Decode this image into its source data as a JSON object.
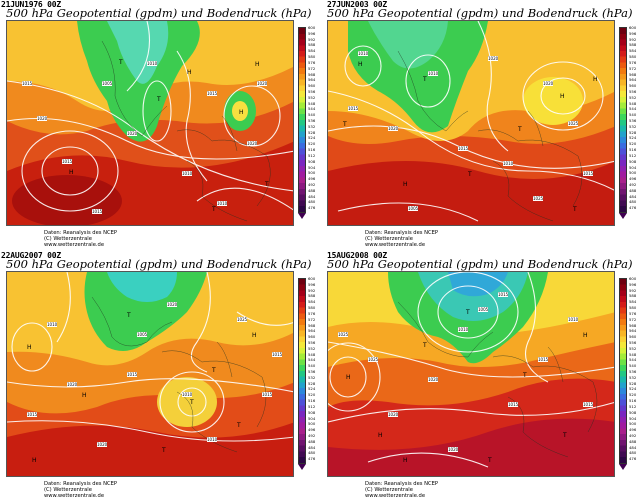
{
  "panels": [
    {
      "date": "21JUN1976 00Z",
      "title": "500 hPa Geopotential (gpdm) und Bodendruck (hPa)",
      "credits": [
        "Daten: Reanalysis des NCEP",
        "(C) Wetterzentrale",
        "www.wetterzentrale.de"
      ]
    },
    {
      "date": "27JUN2003 00Z",
      "title": "500 hPa Geopotential (gpdm) und Bodendruck (hPa)",
      "credits": [
        "Daten: Reanalysis des NCEP",
        "(C) Wetterzentrale",
        "www.wetterzentrale.de"
      ]
    },
    {
      "date": "22AUG2007 00Z",
      "title": "500 hPa Geopotential (gpdm) und Bodendruck (hPa)",
      "credits": [
        "Daten: Reanalysis des NCEP",
        "(C) Wetterzentrale",
        "www.wetterzentrale.de"
      ]
    },
    {
      "date": "15AUG2008 00Z",
      "title": "500 hPa Geopotential (gpdm) und Bodendruck (hPa)",
      "credits": [
        "Daten: Reanalysis des NCEP",
        "(C) Wetterzentrale",
        "www.wetterzentrale.de"
      ]
    }
  ],
  "colorbar": {
    "ticks": [
      "600",
      "596",
      "592",
      "588",
      "584",
      "580",
      "576",
      "572",
      "568",
      "564",
      "560",
      "556",
      "552",
      "548",
      "544",
      "540",
      "536",
      "532",
      "528",
      "524",
      "520",
      "516",
      "512",
      "508",
      "504",
      "500",
      "496",
      "492",
      "488",
      "484",
      "480",
      "476"
    ],
    "colors": [
      "#6e0010",
      "#8a0010",
      "#a5001a",
      "#c00a1a",
      "#d41c1a",
      "#e33a14",
      "#ec5a10",
      "#f27a10",
      "#f5981a",
      "#f8b626",
      "#fad234",
      "#f4e83a",
      "#d6f23a",
      "#a4ec3a",
      "#6ce246",
      "#3cd65c",
      "#22c884",
      "#1ab8ac",
      "#22a2cc",
      "#2c88dc",
      "#3a6ce0",
      "#4e50d8",
      "#6238cc",
      "#7a26c0",
      "#9020b0",
      "#a01ca0",
      "#a8208c",
      "#8c1a80",
      "#701470",
      "#560e60",
      "#400a52",
      "#2c0644"
    ]
  },
  "maps": [
    {
      "pressure_labels": [
        "1015",
        "1020",
        "1010",
        "1015",
        "1020",
        "1020",
        "1010",
        "1015",
        "1020",
        "1005",
        "1010",
        "1015"
      ],
      "symbols": [
        "T",
        "H",
        "T",
        "H",
        "H",
        "T",
        "T",
        "H"
      ]
    },
    {
      "pressure_labels": [
        "1020",
        "1015",
        "1010",
        "1020",
        "1025",
        "1015",
        "1010",
        "1005",
        "1015",
        "1020",
        "1025",
        "1010"
      ],
      "symbols": [
        "H",
        "T",
        "T",
        "H",
        "T",
        "H",
        "T",
        "H",
        "T"
      ]
    },
    {
      "pressure_labels": [
        "1010",
        "1015",
        "1020",
        "1025",
        "1015",
        "1010",
        "1020",
        "1005",
        "1015",
        "1020",
        "1010",
        "1015"
      ],
      "symbols": [
        "H",
        "T",
        "H",
        "T",
        "H",
        "T",
        "T",
        "H",
        "T"
      ]
    },
    {
      "pressure_labels": [
        "1025",
        "1020",
        "1015",
        "1010",
        "1015",
        "1005",
        "1020",
        "1015",
        "1010",
        "1015",
        "1020",
        "1025"
      ],
      "symbols": [
        "H",
        "T",
        "T",
        "H",
        "T",
        "H",
        "T",
        "T",
        "H"
      ]
    }
  ]
}
